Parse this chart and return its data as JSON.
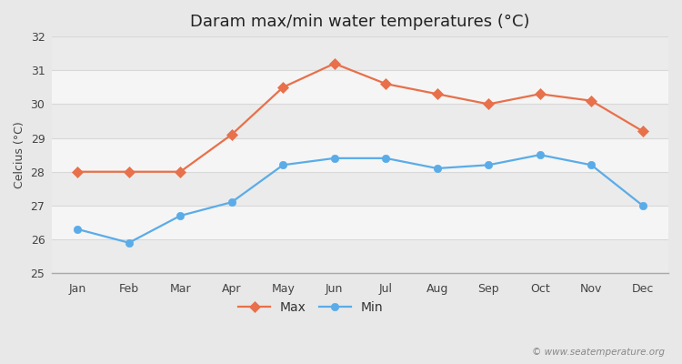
{
  "title": "Daram max/min water temperatures (°C)",
  "ylabel": "Celcius (°C)",
  "months": [
    "Jan",
    "Feb",
    "Mar",
    "Apr",
    "May",
    "Jun",
    "Jul",
    "Aug",
    "Sep",
    "Oct",
    "Nov",
    "Dec"
  ],
  "max_temps": [
    28.0,
    28.0,
    28.0,
    29.1,
    30.5,
    31.2,
    30.6,
    30.3,
    30.0,
    30.3,
    30.1,
    29.2
  ],
  "min_temps": [
    26.3,
    25.9,
    26.7,
    27.1,
    28.2,
    28.4,
    28.4,
    28.1,
    28.2,
    28.5,
    28.2,
    27.0
  ],
  "max_color": "#e8704a",
  "min_color": "#5aace8",
  "ylim": [
    25,
    32
  ],
  "yticks": [
    25,
    26,
    27,
    28,
    29,
    30,
    31,
    32
  ],
  "fig_background": "#e8e8e8",
  "plot_background": "#ffffff",
  "band_color_even": "#ebebeb",
  "band_color_odd": "#f5f5f5",
  "grid_color": "#d8d8d8",
  "watermark": "© www.seatemperature.org",
  "title_fontsize": 13,
  "label_fontsize": 9,
  "tick_fontsize": 9
}
